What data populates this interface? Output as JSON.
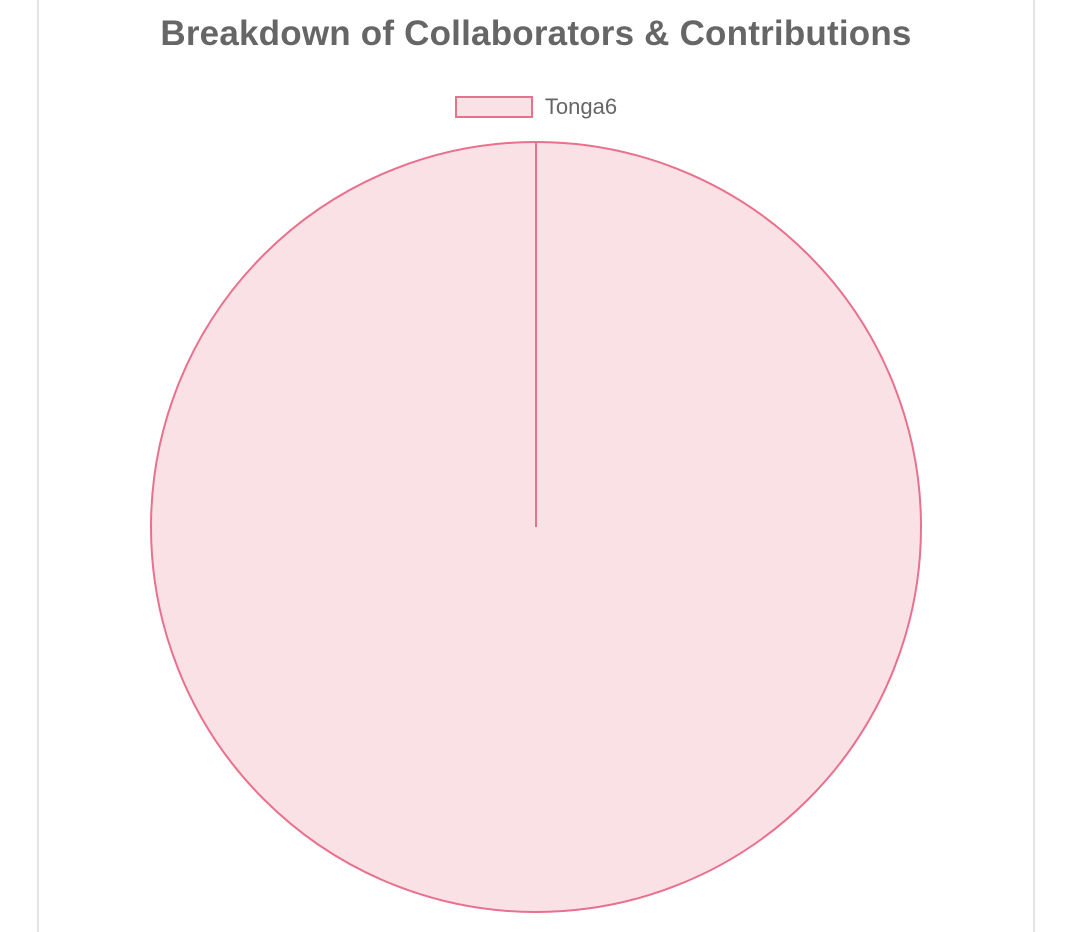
{
  "chart_data": {
    "type": "pie",
    "title": "Breakdown of Collaborators & Contributions",
    "categories": [
      "Tonga6"
    ],
    "values": [
      100
    ],
    "legend_position": "top",
    "colors": {
      "fill": "#fae1e6",
      "stroke": "#e8718d"
    }
  },
  "colors": {
    "title": "#666666",
    "border": "#e4e4e4"
  }
}
